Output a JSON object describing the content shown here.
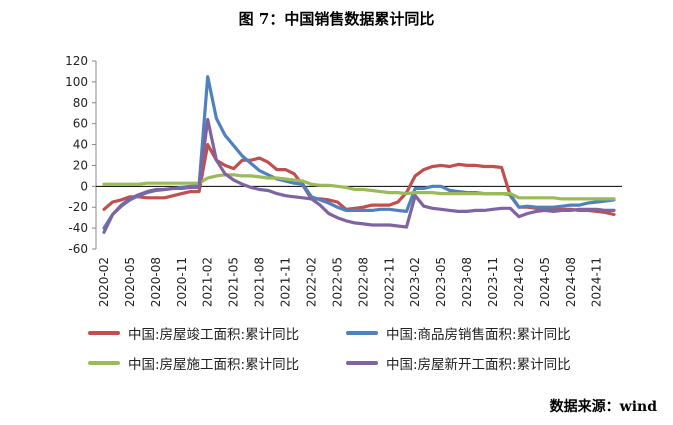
{
  "title": "图 7：中国销售数据累计同比",
  "source": "数据来源：wind",
  "chart_data": {
    "type": "line",
    "y_ticks": [
      120,
      100,
      80,
      60,
      40,
      20,
      0,
      -20,
      -40,
      -60
    ],
    "ylim": [
      -60,
      120
    ],
    "x_tick_labels": [
      "2020-02",
      "2020-05",
      "2020-08",
      "2020-11",
      "2021-02",
      "2021-05",
      "2021-08",
      "2021-11",
      "2022-02",
      "2022-05",
      "2022-08",
      "2022-11",
      "2023-02",
      "2023-05",
      "2023-08",
      "2023-11",
      "2024-02",
      "2024-05",
      "2024-08",
      "2024-11"
    ],
    "x_start": "2020-02",
    "x_end": "2024-12",
    "legend_position": "bottom",
    "series": [
      {
        "name": "中国:房屋竣工面积:累计同比",
        "color": "#c0504d",
        "values": [
          -22,
          -15,
          -13,
          -10,
          -10,
          -11,
          -11,
          -11,
          -9,
          -7,
          -5,
          -5,
          40,
          25,
          20,
          17,
          25,
          25,
          27,
          23,
          16,
          16,
          12,
          1,
          -12,
          -12,
          -13,
          -15,
          -22,
          -21,
          -20,
          -18,
          -18,
          -18,
          -15,
          -6,
          10,
          16,
          19,
          20,
          19,
          21,
          20,
          20,
          19,
          19,
          18,
          -9,
          -20,
          -20,
          -21,
          -22,
          -22,
          -22,
          -22,
          -23,
          -23,
          -24,
          -25,
          -27
        ]
      },
      {
        "name": "中国:商品房销售面积:累计同比",
        "color": "#4f81bd",
        "values": [
          -40,
          -27,
          -19,
          -13,
          -9,
          -6,
          -4,
          -3,
          -2,
          -1,
          0,
          1,
          105,
          65,
          49,
          39,
          29,
          22,
          15,
          11,
          7,
          5,
          3,
          2,
          -10,
          -13,
          -16,
          -20,
          -23,
          -23,
          -23,
          -23,
          -22,
          -22,
          -23,
          -24,
          -2,
          -2,
          0,
          0,
          -4,
          -5,
          -6,
          -6,
          -7,
          -7,
          -7,
          -8,
          -20,
          -19,
          -20,
          -20,
          -20,
          -19,
          -18,
          -18,
          -16,
          -15,
          -14,
          -13
        ]
      },
      {
        "name": "中国:房屋施工面积:累计同比",
        "color": "#9bbb59",
        "values": [
          2,
          2,
          2,
          2,
          2,
          3,
          3,
          3,
          3,
          3,
          3,
          3,
          8,
          10,
          11,
          11,
          10,
          10,
          9,
          8,
          8,
          7,
          6,
          5,
          2,
          1,
          1,
          0,
          -1,
          -3,
          -3,
          -4,
          -5,
          -6,
          -6,
          -7,
          -6,
          -6,
          -6,
          -7,
          -7,
          -7,
          -7,
          -7,
          -7,
          -7,
          -7,
          -7,
          -11,
          -11,
          -11,
          -11,
          -11,
          -12,
          -12,
          -12,
          -12,
          -12,
          -12,
          -12
        ]
      },
      {
        "name": "中国:房屋新开工面积:累计同比",
        "color": "#8064a2",
        "values": [
          -44,
          -27,
          -18,
          -12,
          -8,
          -5,
          -3,
          -3,
          -2,
          -2,
          -1,
          -1,
          64,
          25,
          12,
          6,
          2,
          -1,
          -3,
          -4,
          -7,
          -9,
          -10,
          -11,
          -12,
          -18,
          -26,
          -30,
          -33,
          -35,
          -36,
          -37,
          -37,
          -37,
          -38,
          -39,
          -9,
          -19,
          -21,
          -22,
          -23,
          -24,
          -24,
          -23,
          -23,
          -22,
          -21,
          -21,
          -29,
          -26,
          -24,
          -23,
          -24,
          -23,
          -23,
          -22,
          -22,
          -22,
          -23,
          -23
        ]
      }
    ]
  }
}
